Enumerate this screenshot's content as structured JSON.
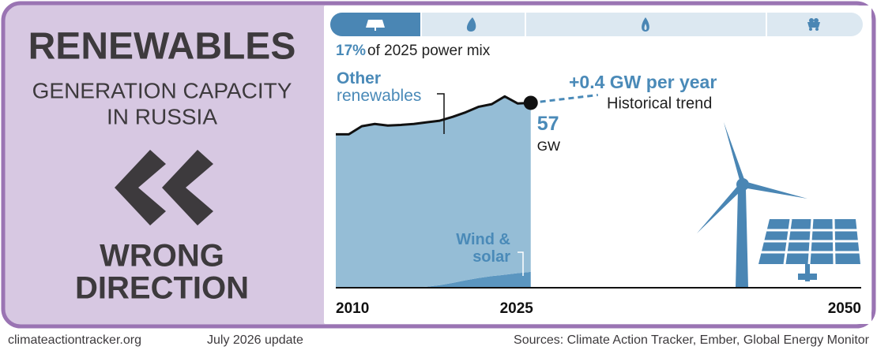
{
  "header": {
    "title": "RENEWABLES",
    "subtitle_lines": [
      "GENERATION CAPACITY",
      "IN RUSSIA"
    ],
    "rating_lines": [
      "WRONG",
      "DIRECTION"
    ]
  },
  "share": {
    "value": {
      "value": 17,
      "label": "17%"
    },
    "text": "of 2025 power mix"
  },
  "chart_data": {
    "type": "stacked-area",
    "x": [
      2010,
      2011,
      2012,
      2013,
      2014,
      2015,
      2016,
      2017,
      2018,
      2019,
      2020,
      2021,
      2022,
      2023,
      2024,
      2025
    ],
    "series": [
      {
        "name": "Wind & solar",
        "color": "#5b96c0",
        "values": [
          0,
          0,
          0,
          0,
          0,
          0.1,
          0.1,
          0.3,
          0.8,
          1.5,
          2.3,
          3.0,
          3.6,
          4.0,
          4.5,
          4.9
        ]
      },
      {
        "name": "Other renewables",
        "color": "#95bdd6",
        "values": [
          47.3,
          47.3,
          49.8,
          50.5,
          50.0,
          50.1,
          50.4,
          50.7,
          50.7,
          51.2,
          51.8,
          52.8,
          53.0,
          55.0,
          52.3,
          52.1
        ]
      }
    ],
    "xlim": [
      2010,
      2050
    ],
    "xticks": [
      2010,
      2025,
      2050
    ],
    "ylim": [
      0,
      70
    ],
    "end_value": 57,
    "end_unit": "GW",
    "trend": {
      "label": "+0.4 GW per year",
      "note": "Historical trend"
    }
  },
  "footer": {
    "site": "climateactiontracker.org",
    "date": "July 2026 update",
    "sources": "Sources: Climate Action Tracker, Ember, Global Energy Monitor"
  }
}
